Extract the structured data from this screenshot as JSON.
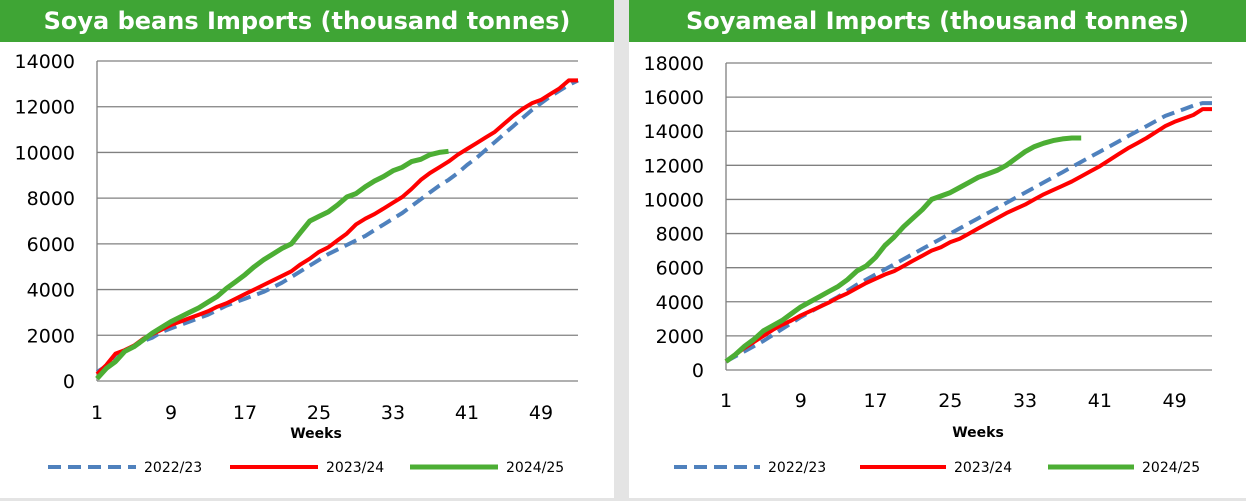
{
  "colors": {
    "title_bg": "#3fa535",
    "s2022": "#4f81bd",
    "s2023": "#ff0000",
    "s2024": "#4cae34",
    "grid": "#808080"
  },
  "chart_data": [
    {
      "type": "line",
      "title": "Soya beans Imports (thousand tonnes)",
      "xlabel": "Weeks",
      "ylabel": "",
      "xlim": [
        1,
        53
      ],
      "ylim": [
        0,
        14000
      ],
      "yticks": [
        0,
        2000,
        4000,
        6000,
        8000,
        10000,
        12000,
        14000
      ],
      "xticks": [
        1,
        9,
        17,
        25,
        33,
        41,
        49
      ],
      "grid": "horizontal",
      "legend_position": "bottom",
      "series": [
        {
          "name": "2022/23",
          "style": "dashed",
          "x": [
            1,
            2,
            3,
            4,
            5,
            6,
            7,
            8,
            9,
            10,
            11,
            12,
            13,
            14,
            15,
            16,
            17,
            18,
            19,
            20,
            21,
            22,
            23,
            24,
            25,
            26,
            27,
            28,
            29,
            30,
            31,
            32,
            33,
            34,
            35,
            36,
            37,
            38,
            39,
            40,
            41,
            42,
            43,
            44,
            45,
            46,
            47,
            48,
            49,
            50,
            51,
            52,
            53
          ],
          "y": [
            400,
            650,
            1150,
            1300,
            1500,
            1750,
            1900,
            2150,
            2300,
            2450,
            2600,
            2750,
            2900,
            3100,
            3300,
            3450,
            3600,
            3750,
            3900,
            4100,
            4300,
            4550,
            4800,
            5050,
            5300,
            5550,
            5750,
            5950,
            6150,
            6350,
            6600,
            6850,
            7100,
            7350,
            7650,
            7950,
            8250,
            8550,
            8800,
            9100,
            9450,
            9750,
            10100,
            10450,
            10800,
            11150,
            11500,
            11850,
            12150,
            12450,
            12700,
            12950,
            13150
          ]
        },
        {
          "name": "2023/24",
          "style": "solid",
          "x": [
            1,
            2,
            3,
            4,
            5,
            6,
            7,
            8,
            9,
            10,
            11,
            12,
            13,
            14,
            15,
            16,
            17,
            18,
            19,
            20,
            21,
            22,
            23,
            24,
            25,
            26,
            27,
            28,
            29,
            30,
            31,
            32,
            33,
            34,
            35,
            36,
            37,
            38,
            39,
            40,
            41,
            42,
            43,
            44,
            45,
            46,
            47,
            48,
            49,
            50,
            51,
            52,
            53
          ],
          "y": [
            300,
            700,
            1200,
            1350,
            1550,
            1850,
            2050,
            2250,
            2450,
            2600,
            2750,
            2900,
            3050,
            3250,
            3400,
            3600,
            3800,
            4000,
            4200,
            4400,
            4600,
            4800,
            5100,
            5350,
            5650,
            5850,
            6150,
            6450,
            6850,
            7100,
            7300,
            7550,
            7800,
            8050,
            8400,
            8800,
            9100,
            9350,
            9600,
            9900,
            10150,
            10400,
            10650,
            10900,
            11250,
            11600,
            11900,
            12150,
            12300,
            12550,
            12800,
            13150,
            13150
          ]
        },
        {
          "name": "2024/25",
          "style": "solid",
          "x": [
            1,
            2,
            3,
            4,
            5,
            6,
            7,
            8,
            9,
            10,
            11,
            12,
            13,
            14,
            15,
            16,
            17,
            18,
            19,
            20,
            21,
            22,
            23,
            24,
            25,
            26,
            27,
            28,
            29,
            30,
            31,
            32,
            33,
            34,
            35,
            36,
            37,
            38,
            39
          ],
          "y": [
            100,
            550,
            850,
            1300,
            1500,
            1800,
            2100,
            2350,
            2600,
            2800,
            3000,
            3200,
            3450,
            3700,
            4050,
            4350,
            4650,
            5000,
            5300,
            5550,
            5800,
            6000,
            6500,
            7000,
            7200,
            7400,
            7700,
            8050,
            8200,
            8500,
            8750,
            8950,
            9200,
            9350,
            9600,
            9700,
            9900,
            10000,
            10050
          ]
        }
      ]
    },
    {
      "type": "line",
      "title": "Soyameal Imports (thousand tonnes)",
      "xlabel": "Weeks",
      "ylabel": "",
      "xlim": [
        1,
        53
      ],
      "ylim": [
        0,
        18000
      ],
      "yticks": [
        0,
        2000,
        4000,
        6000,
        8000,
        10000,
        12000,
        14000,
        16000,
        18000
      ],
      "xticks": [
        1,
        9,
        17,
        25,
        33,
        41,
        49
      ],
      "grid": "horizontal",
      "legend_position": "bottom",
      "series": [
        {
          "name": "2022/23",
          "style": "dashed",
          "x": [
            1,
            2,
            3,
            4,
            5,
            6,
            7,
            8,
            9,
            10,
            11,
            12,
            13,
            14,
            15,
            16,
            17,
            18,
            19,
            20,
            21,
            22,
            23,
            24,
            25,
            26,
            27,
            28,
            29,
            30,
            31,
            32,
            33,
            34,
            35,
            36,
            37,
            38,
            39,
            40,
            41,
            42,
            43,
            44,
            45,
            46,
            47,
            48,
            49,
            50,
            51,
            52,
            53
          ],
          "y": [
            500,
            800,
            1100,
            1400,
            1700,
            2050,
            2400,
            2750,
            3100,
            3400,
            3700,
            4000,
            4300,
            4650,
            5000,
            5300,
            5600,
            5900,
            6200,
            6500,
            6800,
            7100,
            7400,
            7700,
            8000,
            8300,
            8600,
            8900,
            9200,
            9500,
            9800,
            10100,
            10400,
            10700,
            11000,
            11300,
            11600,
            11900,
            12200,
            12500,
            12800,
            13100,
            13400,
            13700,
            14000,
            14300,
            14600,
            14900,
            15100,
            15300,
            15500,
            15650,
            15650
          ]
        },
        {
          "name": "2023/24",
          "style": "solid",
          "x": [
            1,
            2,
            3,
            4,
            5,
            6,
            7,
            8,
            9,
            10,
            11,
            12,
            13,
            14,
            15,
            16,
            17,
            18,
            19,
            20,
            21,
            22,
            23,
            24,
            25,
            26,
            27,
            28,
            29,
            30,
            31,
            32,
            33,
            34,
            35,
            36,
            37,
            38,
            39,
            40,
            41,
            42,
            43,
            44,
            45,
            46,
            47,
            48,
            49,
            50,
            51,
            52,
            53
          ],
          "y": [
            500,
            900,
            1300,
            1650,
            2000,
            2350,
            2650,
            2900,
            3200,
            3450,
            3700,
            3950,
            4250,
            4500,
            4800,
            5100,
            5350,
            5600,
            5800,
            6100,
            6400,
            6700,
            7000,
            7200,
            7500,
            7700,
            8000,
            8300,
            8600,
            8900,
            9200,
            9450,
            9700,
            10000,
            10300,
            10550,
            10800,
            11050,
            11350,
            11650,
            11950,
            12300,
            12650,
            13000,
            13300,
            13600,
            13950,
            14300,
            14550,
            14750,
            14950,
            15300,
            15300
          ]
        },
        {
          "name": "2024/25",
          "style": "solid",
          "x": [
            1,
            2,
            3,
            4,
            5,
            6,
            7,
            8,
            9,
            10,
            11,
            12,
            13,
            14,
            15,
            16,
            17,
            18,
            19,
            20,
            21,
            22,
            23,
            24,
            25,
            26,
            27,
            28,
            29,
            30,
            31,
            32,
            33,
            34,
            35,
            36,
            37,
            38,
            39
          ],
          "y": [
            500,
            900,
            1400,
            1800,
            2300,
            2600,
            2900,
            3300,
            3700,
            4000,
            4300,
            4600,
            4900,
            5300,
            5800,
            6100,
            6600,
            7300,
            7800,
            8400,
            8900,
            9400,
            10000,
            10200,
            10400,
            10700,
            11000,
            11300,
            11500,
            11700,
            12000,
            12400,
            12800,
            13100,
            13300,
            13450,
            13550,
            13600,
            13600
          ]
        }
      ]
    }
  ]
}
